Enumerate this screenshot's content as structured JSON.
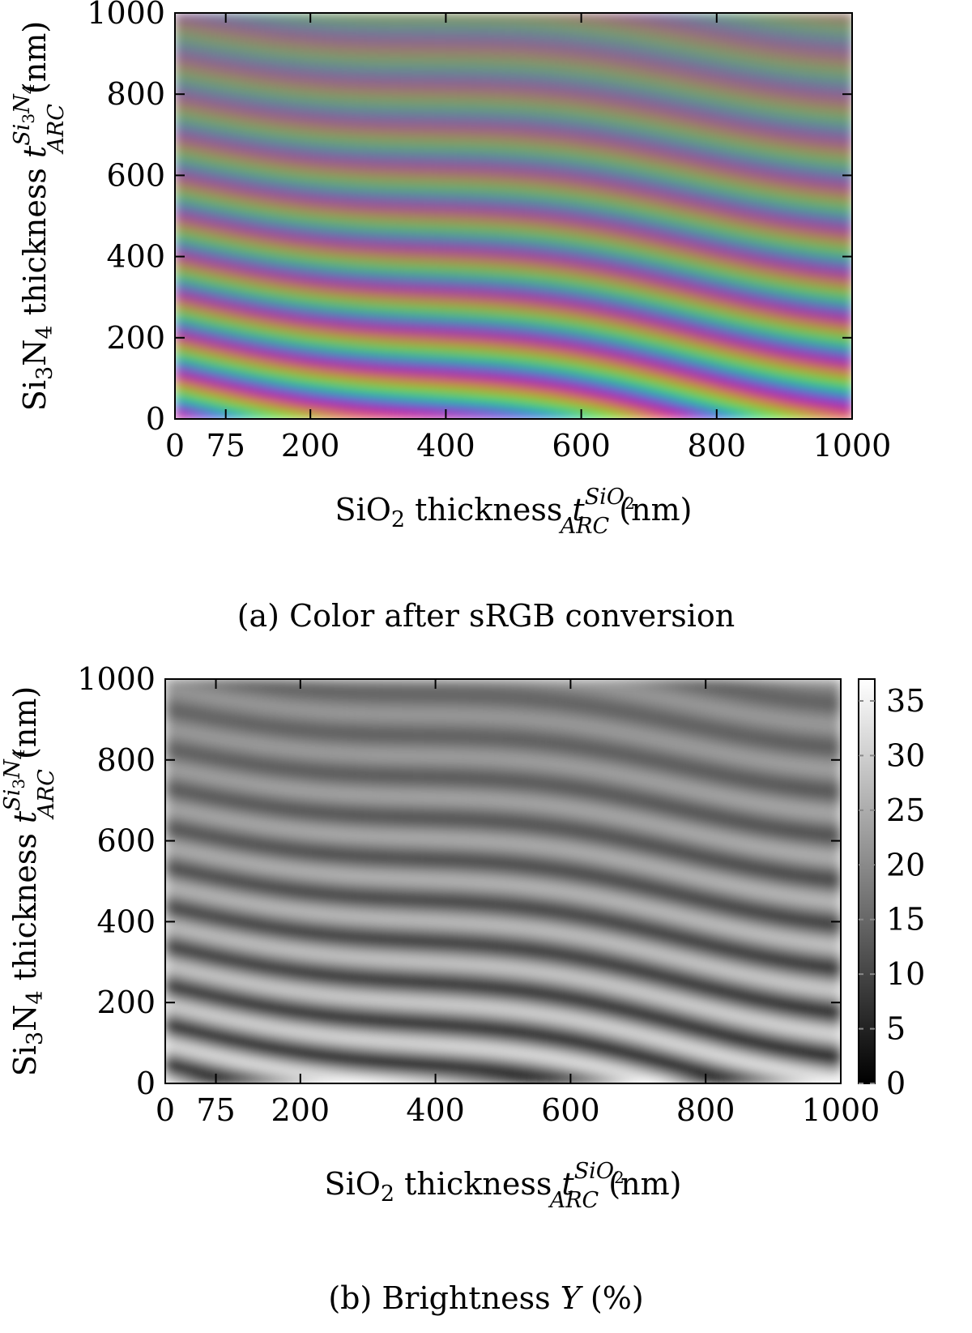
{
  "chart_data": [
    {
      "type": "heatmap",
      "color_mode": "sRGB color map",
      "caption": "(a) Color after sRGB conversion",
      "xlabel": {
        "prefix": "SiO",
        "sub": "2",
        "mid": " thickness ",
        "var": "t",
        "sup": "SiO",
        "sup_sub": "2",
        "var_sub": "ARC",
        "unit": " (nm)"
      },
      "ylabel": {
        "prefix": "Si",
        "sub1": "3",
        "mid1": "N",
        "sub2": "4",
        "mid": " thickness ",
        "var": "t",
        "sup": "Si",
        "sup_sub1": "3",
        "sup_mid": "N",
        "sup_sub2": "4",
        "var_sub": "ARC",
        "unit": " (nm)"
      },
      "xlim": [
        0,
        1000
      ],
      "ylim": [
        0,
        1000
      ],
      "xticks": [
        0,
        75,
        200,
        400,
        600,
        800,
        1000
      ],
      "yticks": [
        0,
        200,
        400,
        600,
        800,
        1000
      ],
      "description_of_bands": "Colored interference bands: magenta, yellow, green, blue stripes sloping down to the right, fading to gray at high Si3N4 thickness"
    },
    {
      "type": "heatmap",
      "color_mode": "grayscale",
      "caption": {
        "prefix": "(b) Brightness ",
        "var": "Y",
        "suffix": " (%)"
      },
      "xlabel": {
        "prefix": "SiO",
        "sub": "2",
        "mid": " thickness ",
        "var": "t",
        "sup": "SiO",
        "sup_sub": "2",
        "var_sub": "ARC",
        "unit": " (nm)"
      },
      "ylabel": {
        "prefix": "Si",
        "sub1": "3",
        "mid1": "N",
        "sub2": "4",
        "mid": " thickness ",
        "var": "t",
        "sup": "Si",
        "sup_sub1": "3",
        "sup_mid": "N",
        "sup_sub2": "4",
        "var_sub": "ARC",
        "unit": " (nm)"
      },
      "xlim": [
        0,
        1000
      ],
      "ylim": [
        0,
        1000
      ],
      "xticks": [
        0,
        75,
        200,
        400,
        600,
        800,
        1000
      ],
      "yticks": [
        0,
        200,
        400,
        600,
        800,
        1000
      ],
      "colorbar": {
        "min": 0,
        "max": 37,
        "ticks": [
          0,
          5,
          10,
          15,
          20,
          25,
          30,
          35
        ],
        "tick_labels": [
          "0",
          "5",
          "10",
          "15",
          "20",
          "25",
          "30",
          "35"
        ]
      }
    }
  ]
}
